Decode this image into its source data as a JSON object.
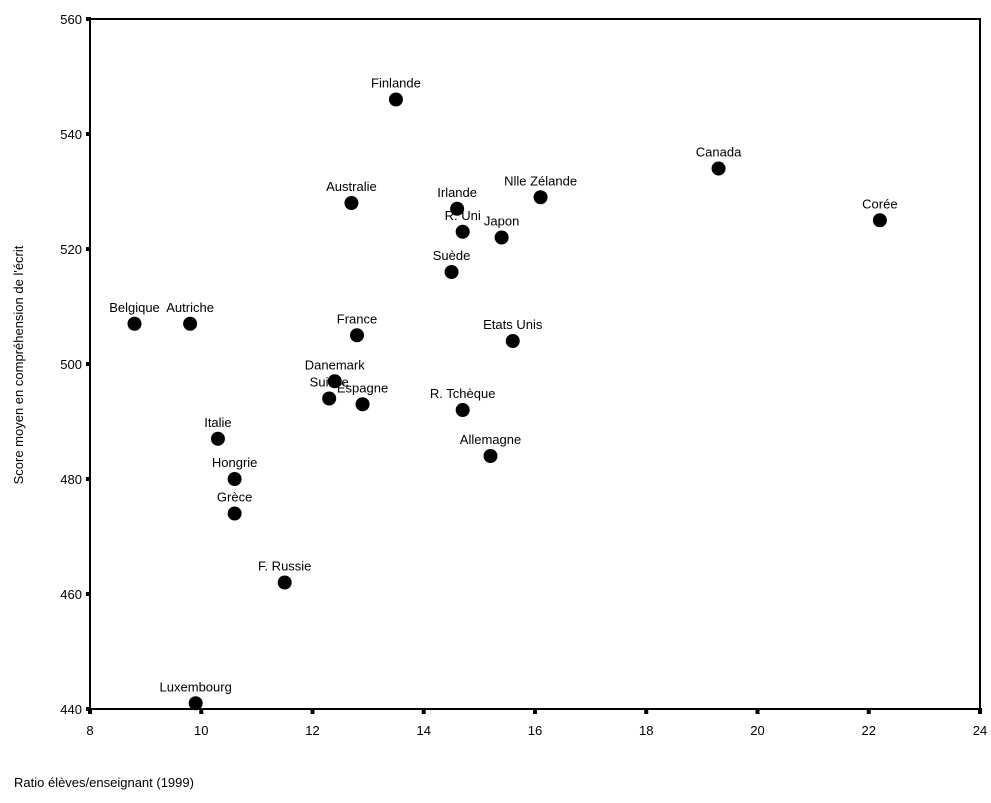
{
  "chart_data": {
    "type": "scatter",
    "title": "",
    "xlabel": "Ratio élèves/enseignant (1999)",
    "ylabel": "Score moyen en compréhension de l'écrit",
    "xlim": [
      8,
      24
    ],
    "ylim": [
      440,
      560
    ],
    "xticks": [
      8,
      10,
      12,
      14,
      16,
      18,
      20,
      22,
      24
    ],
    "yticks": [
      440,
      460,
      480,
      500,
      520,
      540,
      560
    ],
    "grid": false,
    "legend": "none",
    "marker_color": "#000000",
    "points": [
      {
        "label": "Finlande",
        "x": 13.5,
        "y": 546
      },
      {
        "label": "Canada",
        "x": 19.3,
        "y": 534
      },
      {
        "label": "Nlle Zélande",
        "x": 16.1,
        "y": 529
      },
      {
        "label": "Australie",
        "x": 12.7,
        "y": 528
      },
      {
        "label": "Irlande",
        "x": 14.6,
        "y": 527
      },
      {
        "label": "Corée",
        "x": 22.2,
        "y": 525
      },
      {
        "label": "R. Uni",
        "x": 14.7,
        "y": 523
      },
      {
        "label": "Japon",
        "x": 15.4,
        "y": 522
      },
      {
        "label": "Suède",
        "x": 14.5,
        "y": 516
      },
      {
        "label": "Belgique",
        "x": 8.8,
        "y": 507
      },
      {
        "label": "Autriche",
        "x": 9.8,
        "y": 507
      },
      {
        "label": "France",
        "x": 12.8,
        "y": 505
      },
      {
        "label": "Etats Unis",
        "x": 15.6,
        "y": 504
      },
      {
        "label": "Danemark",
        "x": 12.4,
        "y": 497
      },
      {
        "label": "Suisse",
        "x": 12.3,
        "y": 494
      },
      {
        "label": "Espagne",
        "x": 12.9,
        "y": 493
      },
      {
        "label": "R. Tchèque",
        "x": 14.7,
        "y": 492
      },
      {
        "label": "Italie",
        "x": 10.3,
        "y": 487
      },
      {
        "label": "Allemagne",
        "x": 15.2,
        "y": 484
      },
      {
        "label": "Hongrie",
        "x": 10.6,
        "y": 480
      },
      {
        "label": "Grèce",
        "x": 10.6,
        "y": 474
      },
      {
        "label": "F. Russie",
        "x": 11.5,
        "y": 462
      },
      {
        "label": "Luxembourg",
        "x": 9.9,
        "y": 441
      }
    ]
  }
}
